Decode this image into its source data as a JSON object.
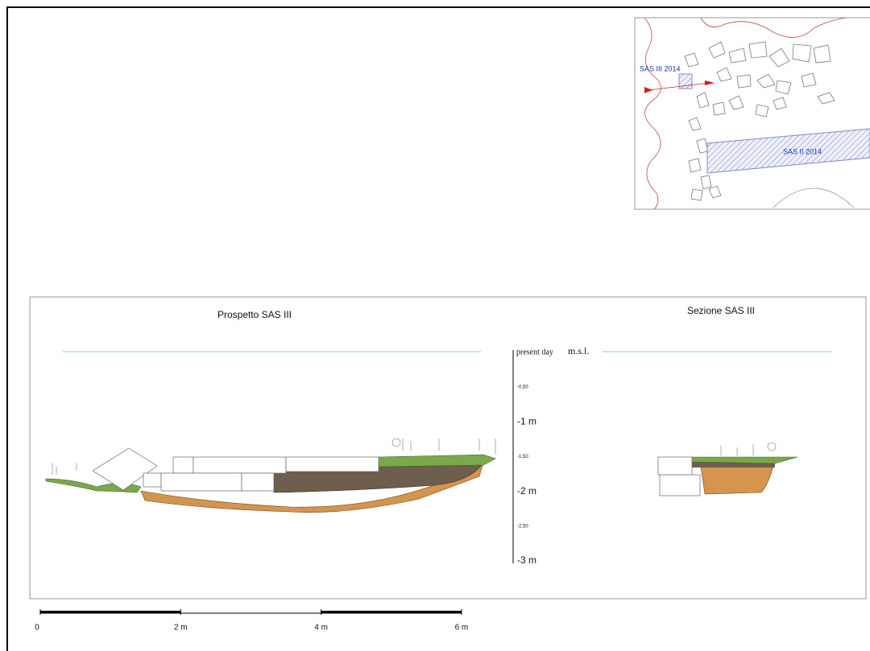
{
  "plan": {
    "labels": [
      "SAS III 2014",
      "SAS II 2014"
    ]
  },
  "elevation": {
    "title": "Prospetto SAS III"
  },
  "section": {
    "title": "Sezione SAS III"
  },
  "depth_scale": {
    "reference": "present day",
    "unit": "m.s.l.",
    "ticks": [
      "-0,50",
      "-1 m",
      "-1,50",
      "-2 m",
      "-2,50",
      "-3 m"
    ]
  },
  "scale_bar": {
    "ticks": [
      "0",
      "2 m",
      "4 m",
      "6 m"
    ]
  }
}
